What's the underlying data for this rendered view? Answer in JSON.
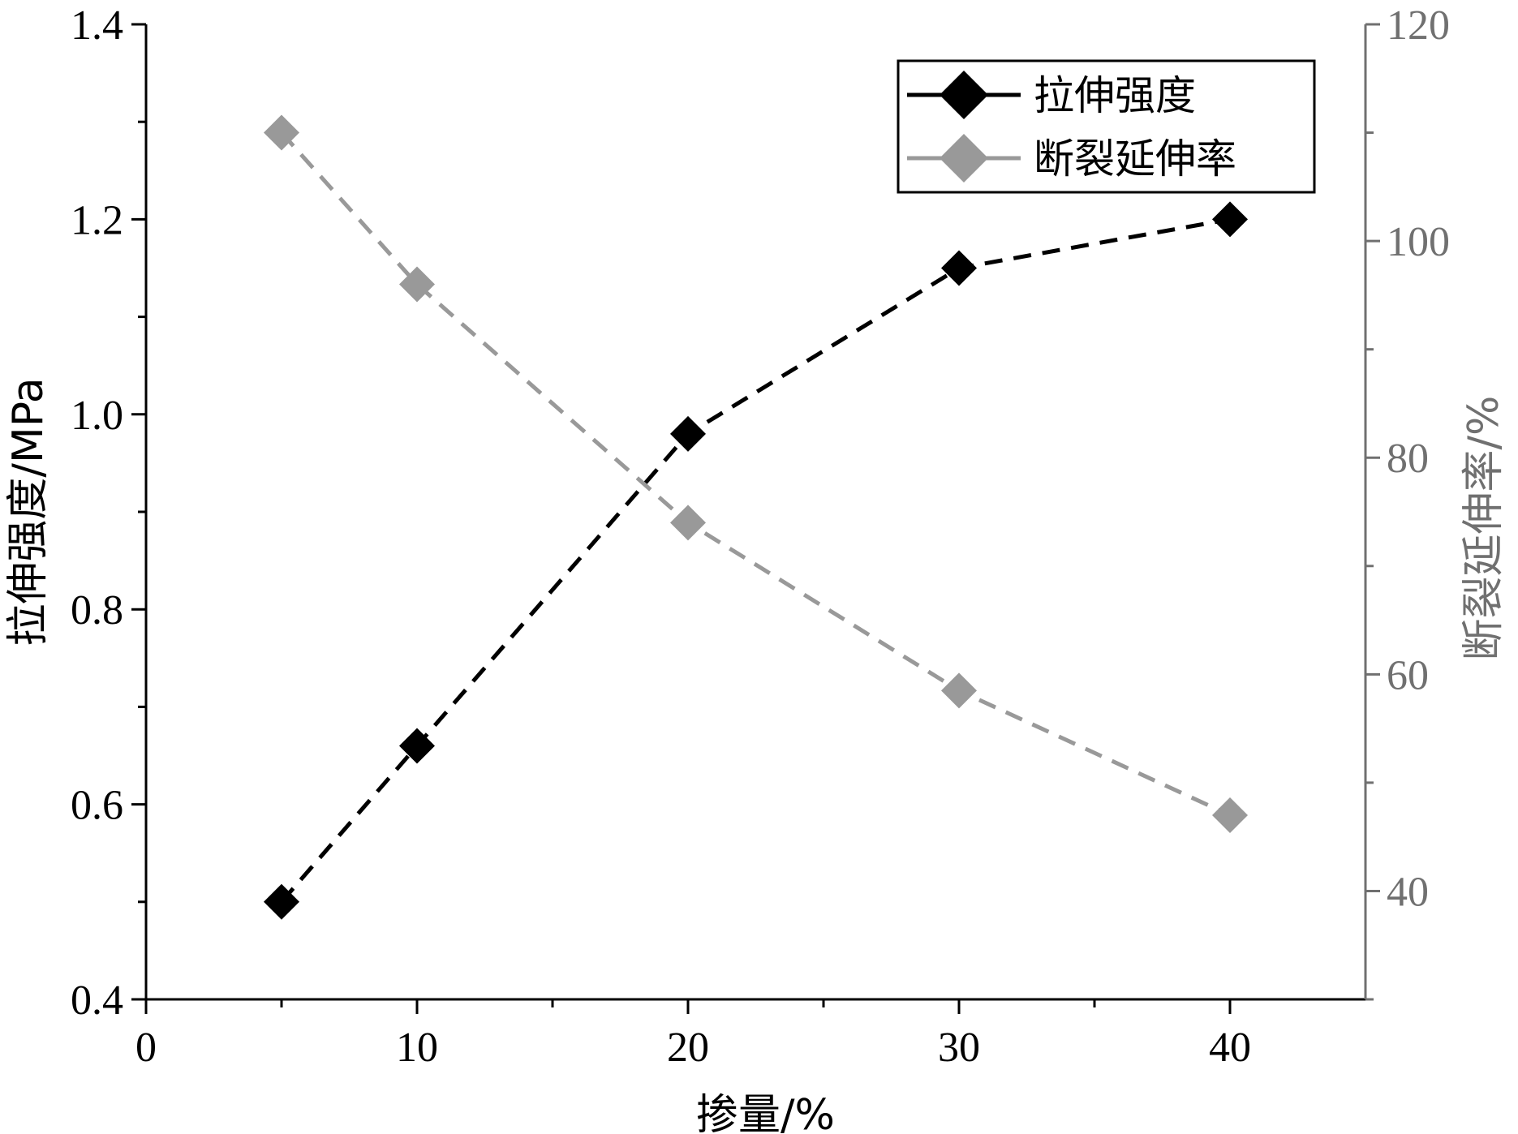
{
  "chart_data": {
    "type": "line",
    "x_label": "掺量/%",
    "y_left_label": "拉伸强度/MPa",
    "y_right_label": "断裂延伸率/%",
    "x_range": [
      0,
      45
    ],
    "y_left_range": [
      0.4,
      1.4
    ],
    "y_right_range": [
      30,
      120
    ],
    "x_ticks": [
      0,
      10,
      20,
      30,
      40
    ],
    "y_left_ticks": [
      0.4,
      0.6,
      0.8,
      1.0,
      1.2,
      1.4
    ],
    "y_right_ticks": [
      40,
      60,
      80,
      100,
      120
    ],
    "grid": false,
    "legend_position": "top-right",
    "series": [
      {
        "name": "拉伸强度",
        "axis": "left",
        "color": "#000000",
        "marker": "diamond",
        "line_style": "dashed",
        "x": [
          5,
          10,
          20,
          30,
          40
        ],
        "y": [
          0.5,
          0.66,
          0.98,
          1.15,
          1.2
        ]
      },
      {
        "name": "断裂延伸率",
        "axis": "right",
        "color": "#999999",
        "marker": "diamond",
        "line_style": "dashed",
        "x": [
          5,
          10,
          20,
          30,
          40
        ],
        "y": [
          110,
          96,
          74,
          58.5,
          47
        ]
      }
    ]
  },
  "colors": {
    "left_axis": "#000000",
    "right_axis": "#707070"
  }
}
